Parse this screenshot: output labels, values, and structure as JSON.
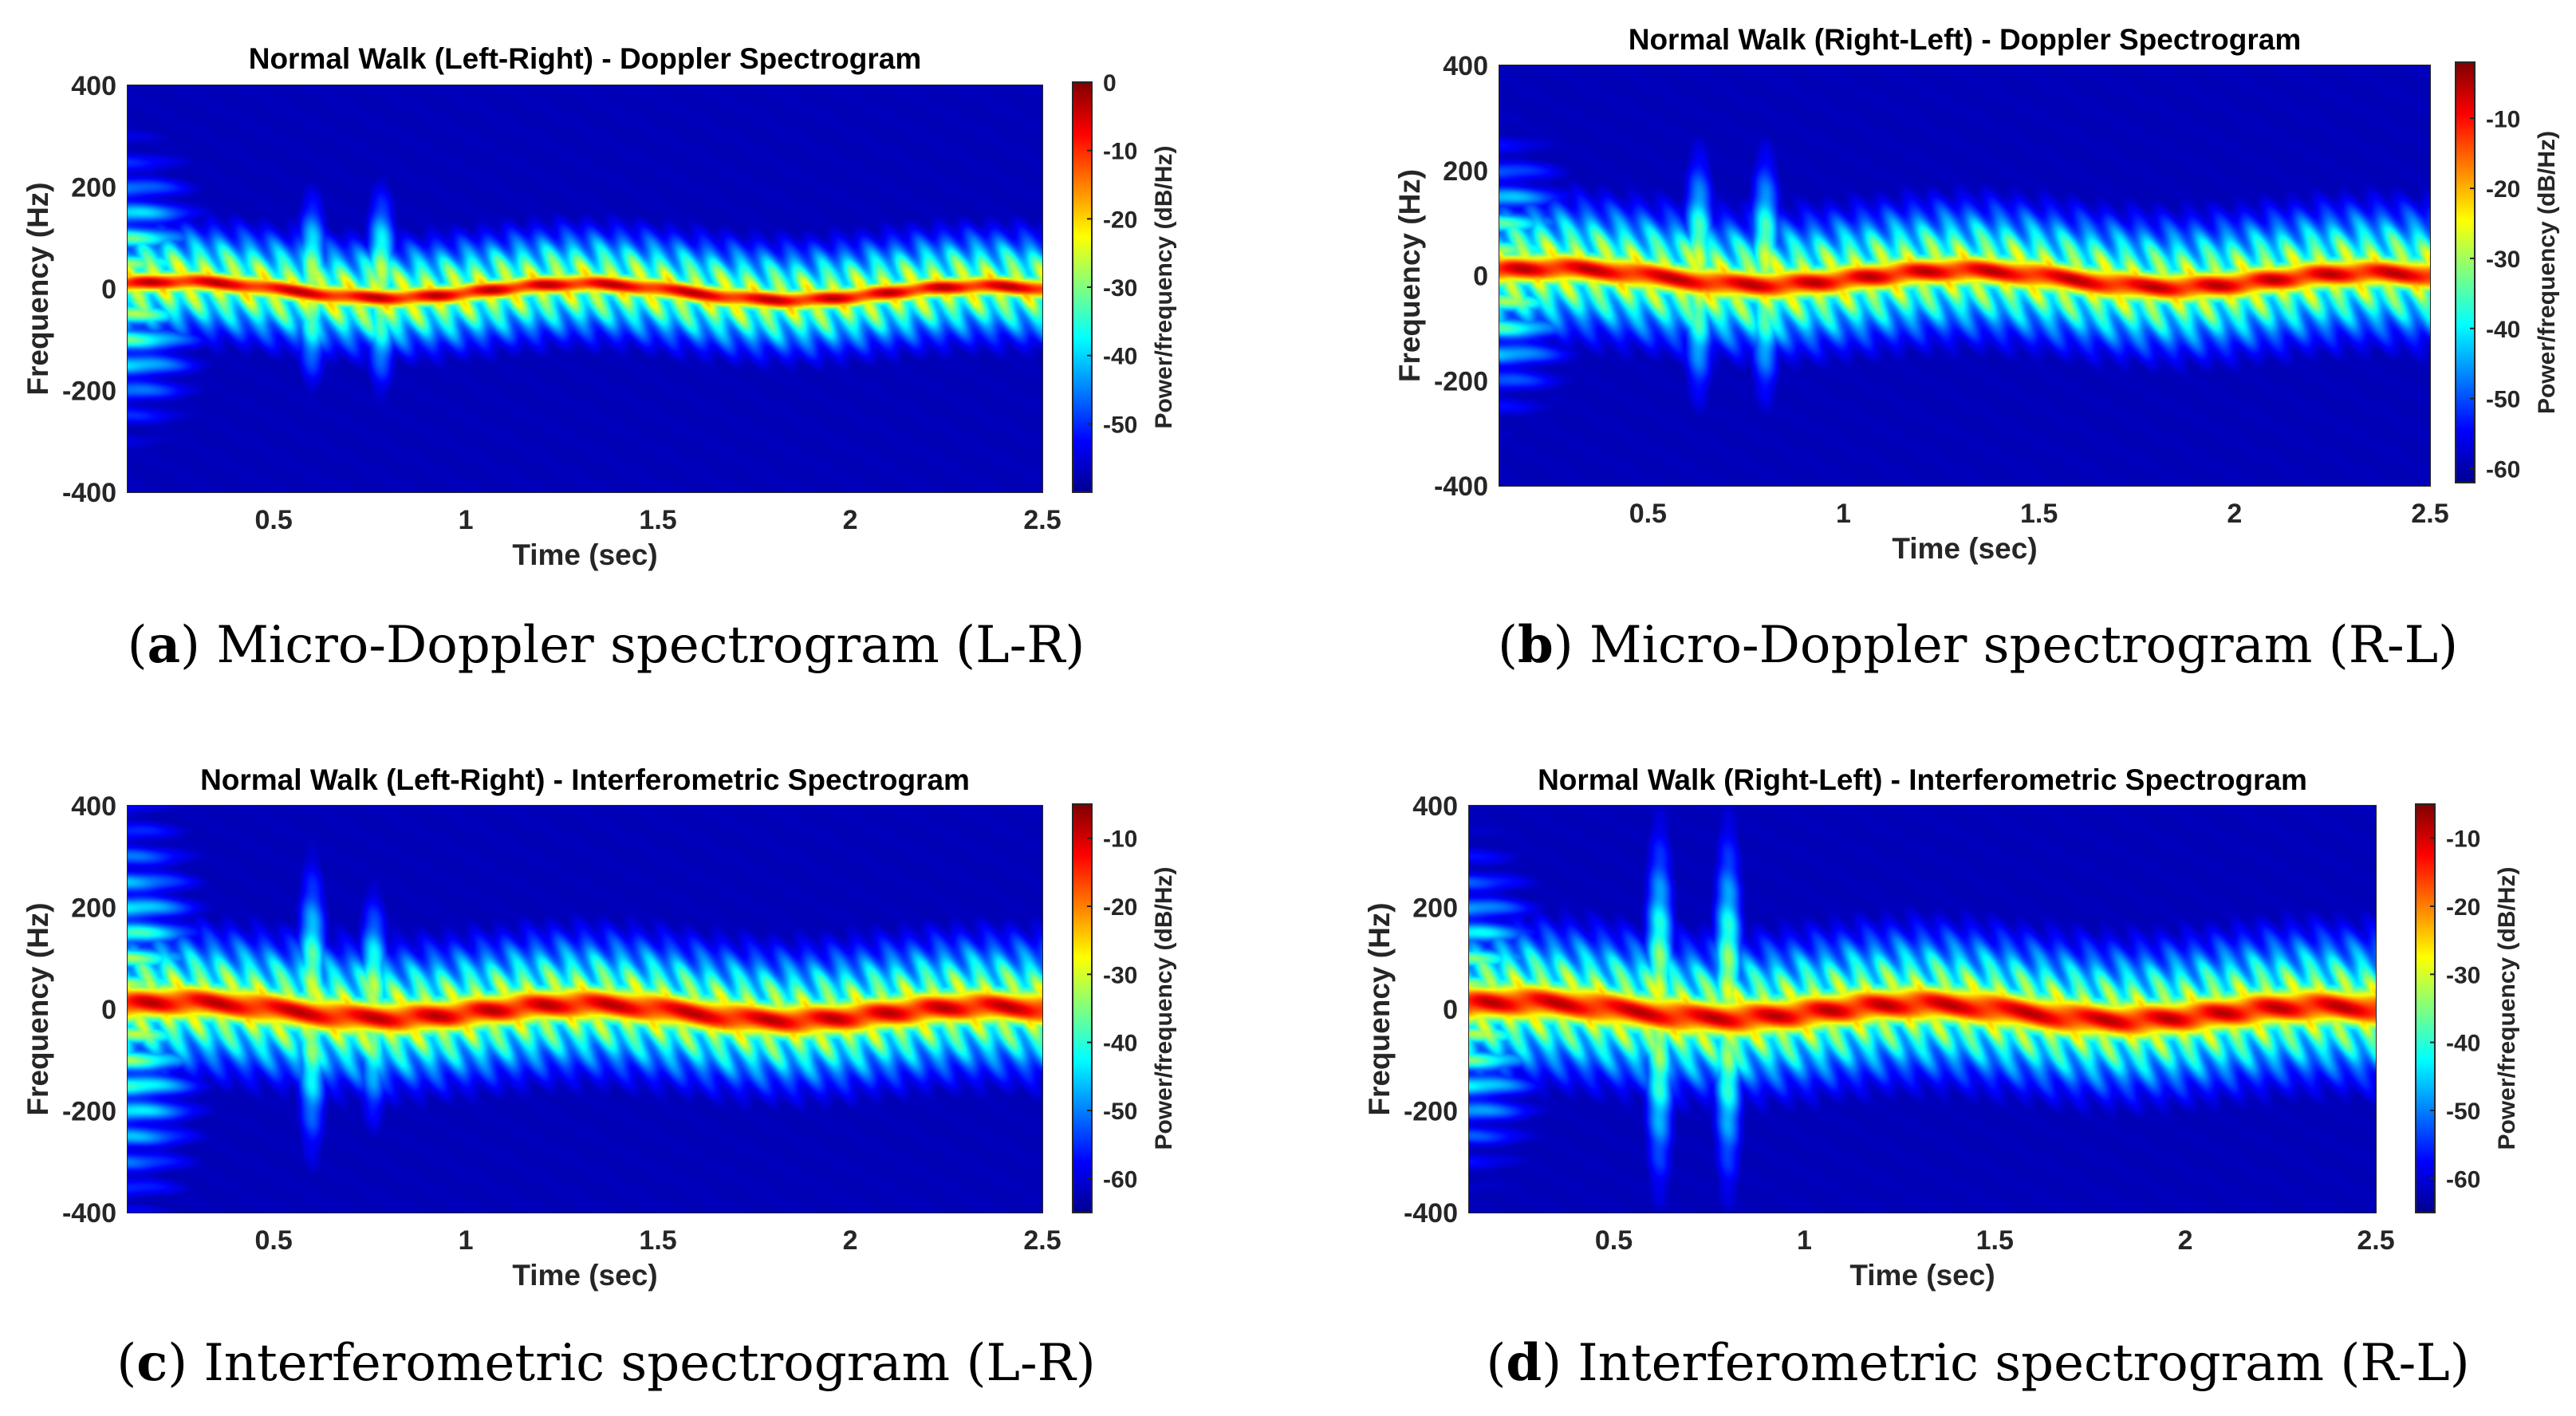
{
  "colormap": "jet",
  "chart_data": [
    {
      "type": "heatmap",
      "title": "Normal Walk (Left-Right) - Doppler Spectrogram",
      "xlabel": "Time (sec)",
      "ylabel": "Frequency (Hz)",
      "colorbar_label": "Power/frequency (dB/Hz)",
      "caption_label": "a",
      "caption_text": "Micro-Doppler spectrogram (L-R)",
      "xlim": [
        0.12,
        2.5
      ],
      "ylim": [
        -400,
        400
      ],
      "xticks": [
        0.5,
        1,
        1.5,
        2,
        2.5
      ],
      "xticklabels": [
        "0.5",
        "1",
        "1.5",
        "2",
        "2.5"
      ],
      "yticks": [
        400,
        200,
        0,
        -200,
        -400
      ],
      "yticklabels": [
        "400",
        "200",
        "0",
        "-200",
        "-400"
      ],
      "clim": [
        -60,
        0
      ],
      "cticks": [
        0,
        -10,
        -20,
        -30,
        -40,
        -50
      ],
      "cticklabels": [
        "0",
        "-10",
        "-20",
        "-30",
        "-40",
        "-50"
      ],
      "core_band_hz": 35,
      "spread_band_hz": 110,
      "initial_spread_hz": 250,
      "bursts": [
        {
          "time": 0.6,
          "extent_hz": 150
        },
        {
          "time": 0.78,
          "extent_hz": 160
        }
      ]
    },
    {
      "type": "heatmap",
      "title": "Normal Walk (Right-Left) - Doppler Spectrogram",
      "xlabel": "Time (sec)",
      "ylabel": "Frequency (Hz)",
      "colorbar_label": "Power/frequency (dB/Hz)",
      "caption_label": "b",
      "caption_text": "Micro-Doppler spectrogram (R-L)",
      "xlim": [
        0.12,
        2.5
      ],
      "ylim": [
        -400,
        400
      ],
      "xticks": [
        0.5,
        1,
        1.5,
        2,
        2.5
      ],
      "xticklabels": [
        "0.5",
        "1",
        "1.5",
        "2",
        "2.5"
      ],
      "yticks": [
        400,
        200,
        0,
        -200,
        -400
      ],
      "yticklabels": [
        "400",
        "200",
        "0",
        "-200",
        "-400"
      ],
      "clim": [
        -62,
        -2
      ],
      "cticks": [
        -10,
        -20,
        -30,
        -40,
        -50,
        -60
      ],
      "cticklabels": [
        "-10",
        "-20",
        "-30",
        "-40",
        "-50",
        "-60"
      ],
      "core_band_hz": 50,
      "spread_band_hz": 130,
      "initial_spread_hz": 230,
      "bursts": [
        {
          "time": 0.63,
          "extent_hz": 190
        },
        {
          "time": 0.8,
          "extent_hz": 190
        }
      ]
    },
    {
      "type": "heatmap",
      "title": "Normal Walk (Left-Right) - Interferometric Spectrogram",
      "xlabel": "Time (sec)",
      "ylabel": "Frequency (Hz)",
      "colorbar_label": "Power/frequency (dB/Hz)",
      "caption_label": "c",
      "caption_text": "Interferometric spectrogram (L-R)",
      "xlim": [
        0.12,
        2.5
      ],
      "ylim": [
        -400,
        400
      ],
      "xticks": [
        0.5,
        1,
        1.5,
        2,
        2.5
      ],
      "xticklabels": [
        "0.5",
        "1",
        "1.5",
        "2",
        "2.5"
      ],
      "yticks": [
        400,
        200,
        0,
        -200,
        -400
      ],
      "yticklabels": [
        "400",
        "200",
        "0",
        "-200",
        "-400"
      ],
      "clim": [
        -65,
        -5
      ],
      "cticks": [
        -10,
        -20,
        -30,
        -40,
        -50,
        -60
      ],
      "cticklabels": [
        "-10",
        "-20",
        "-30",
        "-40",
        "-50",
        "-60"
      ],
      "core_band_hz": 60,
      "spread_band_hz": 140,
      "initial_spread_hz": 360,
      "bursts": [
        {
          "time": 0.6,
          "extent_hz": 230
        },
        {
          "time": 0.76,
          "extent_hz": 180
        }
      ]
    },
    {
      "type": "heatmap",
      "title": "Normal Walk (Right-Left) - Interferometric Spectrogram",
      "xlabel": "Time (sec)",
      "ylabel": "Frequency (Hz)",
      "colorbar_label": "Power/frequency (dB/Hz)",
      "caption_label": "d",
      "caption_text": "Interferometric spectrogram (R-L)",
      "xlim": [
        0.12,
        2.5
      ],
      "ylim": [
        -400,
        400
      ],
      "xticks": [
        0.5,
        1,
        1.5,
        2,
        2.5
      ],
      "xticklabels": [
        "0.5",
        "1",
        "1.5",
        "2",
        "2.5"
      ],
      "yticks": [
        400,
        200,
        0,
        -200,
        -400
      ],
      "yticklabels": [
        "400",
        "200",
        "0",
        "-200",
        "-400"
      ],
      "clim": [
        -65,
        -5
      ],
      "cticks": [
        -10,
        -20,
        -30,
        -40,
        -50,
        -60
      ],
      "cticklabels": [
        "-10",
        "-20",
        "-30",
        "-40",
        "-50",
        "-60"
      ],
      "core_band_hz": 65,
      "spread_band_hz": 150,
      "initial_spread_hz": 280,
      "bursts": [
        {
          "time": 0.62,
          "extent_hz": 290
        },
        {
          "time": 0.8,
          "extent_hz": 290
        }
      ]
    }
  ]
}
